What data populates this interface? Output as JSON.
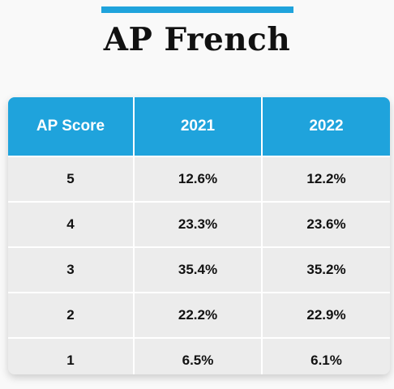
{
  "title": "AP French",
  "colors": {
    "accent": "#1fa3dc",
    "header_text": "#ffffff",
    "row_bg": "#ececec"
  },
  "chart_data": {
    "type": "table",
    "title": "AP French",
    "columns": [
      "AP Score",
      "2021",
      "2022"
    ],
    "rows": [
      [
        "5",
        "12.6%",
        "12.2%"
      ],
      [
        "4",
        "23.3%",
        "23.6%"
      ],
      [
        "3",
        "35.4%",
        "35.2%"
      ],
      [
        "2",
        "22.2%",
        "22.9%"
      ],
      [
        "1",
        "6.5%",
        "6.1%"
      ]
    ]
  }
}
